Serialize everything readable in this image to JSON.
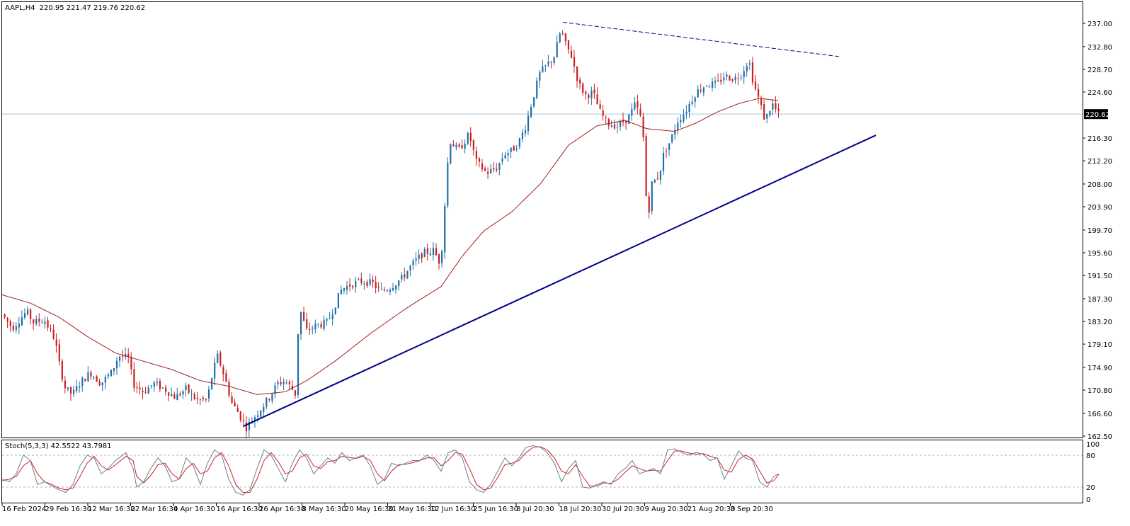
{
  "header": {
    "symbol": "AAPL,H4",
    "ohlc": "220.95 221.47 219.76 220.62"
  },
  "indicator": {
    "label": "Stoch(5,3,3) 42.5522 43.7981",
    "levels": [
      "100",
      "80",
      "20",
      "0"
    ]
  },
  "current_price": "220.62",
  "colors": {
    "bull": "#1f6fa8",
    "bear": "#cc1f1f",
    "ma": "#a02020",
    "trendline": "#00008b",
    "price_line": "#a9c8e0",
    "stoch_main": "#6a8090",
    "stoch_signal": "#cc2222"
  },
  "chart_data": [
    {
      "type": "candlestick",
      "y_ticks": [
        "237.00",
        "232.80",
        "228.70",
        "224.60",
        "220.62",
        "216.30",
        "212.20",
        "208.00",
        "203.90",
        "199.70",
        "195.60",
        "191.50",
        "187.30",
        "183.20",
        "179.10",
        "174.90",
        "170.80",
        "166.60",
        "162.50"
      ],
      "x_ticks": [
        "16 Feb 2024",
        "29 Feb 16:30",
        "12 Mar 16:30",
        "22 Mar 16:30",
        "4 Apr 16:30",
        "16 Apr 16:30",
        "26 Apr 16:30",
        "8 May 16:30",
        "20 May 16:30",
        "31 May 16:30",
        "12 Jun 16:30",
        "25 Jun 16:30",
        "8 Jul 20:30",
        "18 Jul 20:30",
        "30 Jul 20:30",
        "9 Aug 20:30",
        "21 Aug 20:30",
        "3 Sep 20:30"
      ],
      "ylim": [
        162.5,
        239.5
      ],
      "price_path": [
        [
          0,
          184.5
        ],
        [
          15,
          182.0
        ],
        [
          35,
          185.0
        ],
        [
          45,
          183.0
        ],
        [
          60,
          183.5
        ],
        [
          75,
          180.0
        ],
        [
          82,
          175.0
        ],
        [
          90,
          171.0
        ],
        [
          100,
          170.0
        ],
        [
          110,
          172.0
        ],
        [
          125,
          174.0
        ],
        [
          140,
          172.0
        ],
        [
          155,
          174.0
        ],
        [
          165,
          177.0
        ],
        [
          180,
          176.5
        ],
        [
          185,
          172.0
        ],
        [
          200,
          170.5
        ],
        [
          215,
          172.0
        ],
        [
          230,
          171.0
        ],
        [
          245,
          169.5
        ],
        [
          260,
          171.0
        ],
        [
          275,
          169.0
        ],
        [
          290,
          169.0
        ],
        [
          298,
          174.0
        ],
        [
          305,
          177.0
        ],
        [
          315,
          173.0
        ],
        [
          325,
          168.5
        ],
        [
          335,
          166.5
        ],
        [
          345,
          164.0
        ],
        [
          360,
          166.5
        ],
        [
          375,
          169.0
        ],
        [
          390,
          172.0
        ],
        [
          400,
          172.5
        ],
        [
          410,
          171.0
        ],
        [
          415,
          170.0
        ],
        [
          420,
          186.0
        ],
        [
          430,
          181.5
        ],
        [
          445,
          182.5
        ],
        [
          460,
          183.0
        ],
        [
          470,
          186.0
        ],
        [
          480,
          189.0
        ],
        [
          495,
          190.0
        ],
        [
          510,
          190.5
        ],
        [
          525,
          190.0
        ],
        [
          535,
          188.5
        ],
        [
          550,
          189.5
        ],
        [
          565,
          191.0
        ],
        [
          580,
          193.5
        ],
        [
          595,
          195.5
        ],
        [
          610,
          196.0
        ],
        [
          620,
          193.5
        ],
        [
          625,
          203.0
        ],
        [
          632,
          216.0
        ],
        [
          645,
          214.0
        ],
        [
          660,
          217.0
        ],
        [
          670,
          212.0
        ],
        [
          685,
          210.0
        ],
        [
          700,
          211.0
        ],
        [
          710,
          213.5
        ],
        [
          720,
          214.0
        ],
        [
          730,
          215.5
        ],
        [
          740,
          218.5
        ],
        [
          748,
          222.5
        ],
        [
          760,
          228.0
        ],
        [
          770,
          229.5
        ],
        [
          780,
          231.0
        ],
        [
          790,
          236.0
        ],
        [
          795,
          233.5
        ],
        [
          805,
          231.0
        ],
        [
          815,
          226.0
        ],
        [
          825,
          224.0
        ],
        [
          835,
          224.5
        ],
        [
          845,
          221.0
        ],
        [
          855,
          219.0
        ],
        [
          870,
          218.5
        ],
        [
          885,
          220.0
        ],
        [
          895,
          222.5
        ],
        [
          905,
          219.0
        ],
        [
          912,
          201.0
        ],
        [
          918,
          208.0
        ],
        [
          928,
          209.5
        ],
        [
          935,
          213.5
        ],
        [
          945,
          216.0
        ],
        [
          955,
          219.5
        ],
        [
          965,
          221.0
        ],
        [
          980,
          224.5
        ],
        [
          995,
          226.0
        ],
        [
          1010,
          226.0
        ],
        [
          1020,
          227.5
        ],
        [
          1035,
          227.0
        ],
        [
          1045,
          228.0
        ],
        [
          1055,
          230.5
        ],
        [
          1062,
          226.0
        ],
        [
          1070,
          223.0
        ],
        [
          1078,
          219.5
        ],
        [
          1088,
          222.5
        ],
        [
          1097,
          220.6
        ]
      ],
      "ma_path": [
        [
          0,
          188.0
        ],
        [
          40,
          186.5
        ],
        [
          80,
          184.0
        ],
        [
          120,
          180.5
        ],
        [
          160,
          177.5
        ],
        [
          200,
          176.0
        ],
        [
          240,
          174.5
        ],
        [
          280,
          172.5
        ],
        [
          320,
          171.5
        ],
        [
          360,
          170.0
        ],
        [
          400,
          170.5
        ],
        [
          430,
          172.5
        ],
        [
          470,
          176.0
        ],
        [
          520,
          181.0
        ],
        [
          570,
          185.5
        ],
        [
          620,
          189.5
        ],
        [
          650,
          195.0
        ],
        [
          680,
          199.5
        ],
        [
          720,
          203.0
        ],
        [
          760,
          208.0
        ],
        [
          800,
          215.0
        ],
        [
          840,
          218.5
        ],
        [
          880,
          219.5
        ],
        [
          910,
          218.0
        ],
        [
          950,
          217.5
        ],
        [
          980,
          219.0
        ],
        [
          1010,
          221.0
        ],
        [
          1040,
          222.5
        ],
        [
          1070,
          223.5
        ],
        [
          1097,
          223.0
        ]
      ],
      "resistance_line": [
        [
          792,
          237.2
        ],
        [
          1183,
          231.0
        ]
      ],
      "support_line": [
        [
          341,
          164.3
        ],
        [
          1234,
          216.8
        ]
      ]
    },
    {
      "type": "line",
      "name": "Stoch(5,3,3)",
      "ylim": [
        0,
        100
      ],
      "levels": [
        80,
        20
      ],
      "main": [
        [
          0,
          35
        ],
        [
          10,
          30
        ],
        [
          20,
          45
        ],
        [
          30,
          80
        ],
        [
          40,
          70
        ],
        [
          50,
          25
        ],
        [
          60,
          30
        ],
        [
          70,
          22
        ],
        [
          80,
          15
        ],
        [
          90,
          10
        ],
        [
          100,
          25
        ],
        [
          110,
          60
        ],
        [
          120,
          80
        ],
        [
          130,
          75
        ],
        [
          140,
          45
        ],
        [
          150,
          55
        ],
        [
          160,
          70
        ],
        [
          175,
          85
        ],
        [
          185,
          55
        ],
        [
          190,
          20
        ],
        [
          200,
          30
        ],
        [
          210,
          55
        ],
        [
          220,
          75
        ],
        [
          230,
          60
        ],
        [
          240,
          30
        ],
        [
          250,
          35
        ],
        [
          260,
          75
        ],
        [
          270,
          60
        ],
        [
          280,
          25
        ],
        [
          290,
          65
        ],
        [
          300,
          90
        ],
        [
          310,
          80
        ],
        [
          320,
          35
        ],
        [
          330,
          10
        ],
        [
          340,
          5
        ],
        [
          350,
          15
        ],
        [
          360,
          55
        ],
        [
          370,
          90
        ],
        [
          380,
          80
        ],
        [
          390,
          55
        ],
        [
          400,
          30
        ],
        [
          410,
          65
        ],
        [
          420,
          90
        ],
        [
          430,
          75
        ],
        [
          440,
          45
        ],
        [
          450,
          60
        ],
        [
          460,
          75
        ],
        [
          470,
          65
        ],
        [
          480,
          85
        ],
        [
          490,
          70
        ],
        [
          500,
          75
        ],
        [
          510,
          80
        ],
        [
          520,
          60
        ],
        [
          530,
          25
        ],
        [
          540,
          35
        ],
        [
          550,
          65
        ],
        [
          560,
          60
        ],
        [
          570,
          65
        ],
        [
          580,
          70
        ],
        [
          590,
          70
        ],
        [
          600,
          80
        ],
        [
          610,
          70
        ],
        [
          620,
          50
        ],
        [
          630,
          85
        ],
        [
          640,
          90
        ],
        [
          650,
          75
        ],
        [
          660,
          30
        ],
        [
          670,
          15
        ],
        [
          680,
          10
        ],
        [
          690,
          25
        ],
        [
          700,
          50
        ],
        [
          710,
          75
        ],
        [
          720,
          60
        ],
        [
          730,
          75
        ],
        [
          740,
          95
        ],
        [
          750,
          98
        ],
        [
          760,
          95
        ],
        [
          770,
          85
        ],
        [
          780,
          65
        ],
        [
          790,
          30
        ],
        [
          800,
          55
        ],
        [
          810,
          70
        ],
        [
          820,
          20
        ],
        [
          830,
          18
        ],
        [
          840,
          25
        ],
        [
          850,
          30
        ],
        [
          860,
          25
        ],
        [
          870,
          45
        ],
        [
          880,
          55
        ],
        [
          890,
          70
        ],
        [
          900,
          45
        ],
        [
          910,
          50
        ],
        [
          920,
          55
        ],
        [
          930,
          45
        ],
        [
          940,
          90
        ],
        [
          950,
          92
        ],
        [
          960,
          85
        ],
        [
          970,
          80
        ],
        [
          980,
          85
        ],
        [
          990,
          82
        ],
        [
          1000,
          70
        ],
        [
          1010,
          75
        ],
        [
          1020,
          35
        ],
        [
          1030,
          60
        ],
        [
          1040,
          88
        ],
        [
          1050,
          75
        ],
        [
          1060,
          70
        ],
        [
          1070,
          30
        ],
        [
          1080,
          20
        ],
        [
          1090,
          40
        ],
        [
          1097,
          45
        ]
      ],
      "signal": [
        [
          0,
          32
        ],
        [
          10,
          35
        ],
        [
          20,
          40
        ],
        [
          30,
          60
        ],
        [
          40,
          70
        ],
        [
          50,
          45
        ],
        [
          60,
          30
        ],
        [
          70,
          25
        ],
        [
          80,
          18
        ],
        [
          90,
          15
        ],
        [
          100,
          18
        ],
        [
          110,
          40
        ],
        [
          120,
          65
        ],
        [
          130,
          78
        ],
        [
          140,
          60
        ],
        [
          150,
          52
        ],
        [
          160,
          62
        ],
        [
          175,
          78
        ],
        [
          185,
          70
        ],
        [
          190,
          40
        ],
        [
          200,
          28
        ],
        [
          210,
          42
        ],
        [
          220,
          62
        ],
        [
          230,
          65
        ],
        [
          240,
          45
        ],
        [
          250,
          35
        ],
        [
          260,
          55
        ],
        [
          270,
          65
        ],
        [
          280,
          45
        ],
        [
          290,
          50
        ],
        [
          300,
          75
        ],
        [
          310,
          85
        ],
        [
          320,
          60
        ],
        [
          330,
          25
        ],
        [
          340,
          10
        ],
        [
          350,
          10
        ],
        [
          360,
          35
        ],
        [
          370,
          70
        ],
        [
          380,
          85
        ],
        [
          390,
          68
        ],
        [
          400,
          45
        ],
        [
          410,
          50
        ],
        [
          420,
          75
        ],
        [
          430,
          82
        ],
        [
          440,
          60
        ],
        [
          450,
          55
        ],
        [
          460,
          68
        ],
        [
          470,
          70
        ],
        [
          480,
          78
        ],
        [
          490,
          76
        ],
        [
          500,
          74
        ],
        [
          510,
          78
        ],
        [
          520,
          70
        ],
        [
          530,
          45
        ],
        [
          540,
          32
        ],
        [
          550,
          50
        ],
        [
          560,
          62
        ],
        [
          570,
          63
        ],
        [
          580,
          66
        ],
        [
          590,
          70
        ],
        [
          600,
          75
        ],
        [
          610,
          75
        ],
        [
          620,
          60
        ],
        [
          630,
          70
        ],
        [
          640,
          85
        ],
        [
          650,
          82
        ],
        [
          660,
          55
        ],
        [
          670,
          25
        ],
        [
          680,
          15
        ],
        [
          690,
          18
        ],
        [
          700,
          38
        ],
        [
          710,
          62
        ],
        [
          720,
          65
        ],
        [
          730,
          70
        ],
        [
          740,
          85
        ],
        [
          750,
          95
        ],
        [
          760,
          96
        ],
        [
          770,
          90
        ],
        [
          780,
          75
        ],
        [
          790,
          50
        ],
        [
          800,
          45
        ],
        [
          810,
          62
        ],
        [
          820,
          40
        ],
        [
          830,
          22
        ],
        [
          840,
          22
        ],
        [
          850,
          28
        ],
        [
          860,
          27
        ],
        [
          870,
          35
        ],
        [
          880,
          48
        ],
        [
          890,
          60
        ],
        [
          900,
          55
        ],
        [
          910,
          50
        ],
        [
          920,
          52
        ],
        [
          930,
          50
        ],
        [
          940,
          70
        ],
        [
          950,
          88
        ],
        [
          960,
          88
        ],
        [
          970,
          84
        ],
        [
          980,
          82
        ],
        [
          990,
          83
        ],
        [
          1000,
          78
        ],
        [
          1010,
          74
        ],
        [
          1020,
          52
        ],
        [
          1030,
          48
        ],
        [
          1040,
          72
        ],
        [
          1050,
          80
        ],
        [
          1060,
          73
        ],
        [
          1070,
          50
        ],
        [
          1080,
          28
        ],
        [
          1090,
          32
        ],
        [
          1097,
          44
        ]
      ]
    }
  ]
}
